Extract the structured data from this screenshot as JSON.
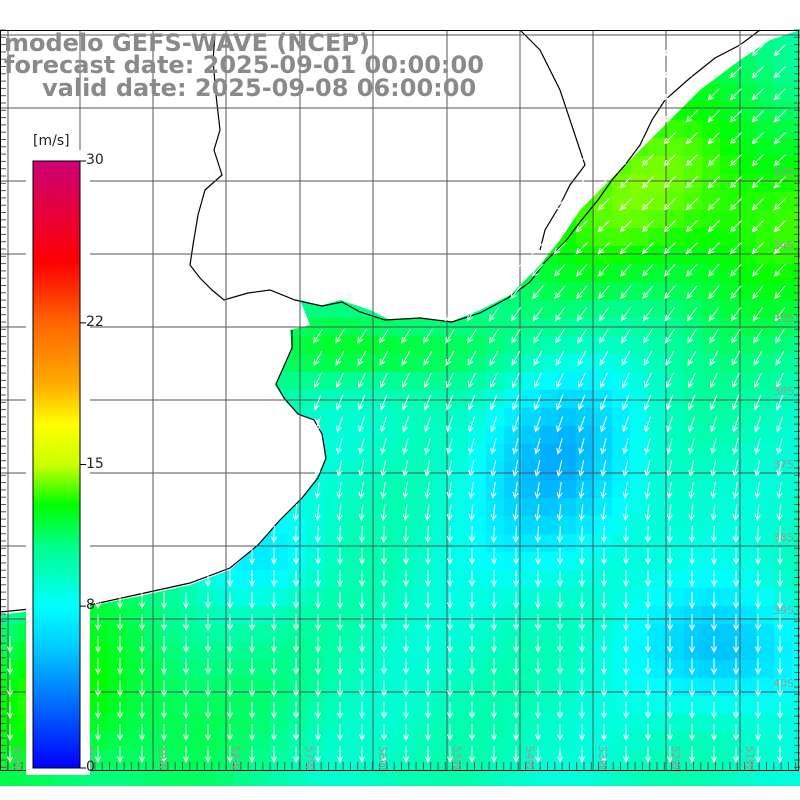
{
  "header": {
    "model_line": "modelo GEFS-WAVE (NCEP)",
    "forecast_line": "forecast date: 2025-09-01 00:00:00",
    "valid_line": "valid date: 2025-09-08 06:00:00"
  },
  "colorbar": {
    "unit": "[m/s]",
    "ticks": [
      {
        "value": 30,
        "label": "30"
      },
      {
        "value": 22,
        "label": "22"
      },
      {
        "value": 15,
        "label": "15"
      },
      {
        "value": 8,
        "label": "8"
      },
      {
        "value": 0,
        "label": "0"
      }
    ],
    "min": 0,
    "max": 30,
    "stops": [
      {
        "v": 0,
        "color": "#0000ff"
      },
      {
        "v": 3,
        "color": "#0066ff"
      },
      {
        "v": 6,
        "color": "#00ccff"
      },
      {
        "v": 8,
        "color": "#00ffff"
      },
      {
        "v": 11,
        "color": "#00ff88"
      },
      {
        "v": 13,
        "color": "#00ff00"
      },
      {
        "v": 15,
        "color": "#ccff00"
      },
      {
        "v": 17,
        "color": "#ffff00"
      },
      {
        "v": 19,
        "color": "#ffaa00"
      },
      {
        "v": 22,
        "color": "#ff6600"
      },
      {
        "v": 25,
        "color": "#ff0000"
      },
      {
        "v": 30,
        "color": "#cc0077"
      }
    ]
  },
  "map": {
    "lon_labels": [
      "61W",
      "60W",
      "59W",
      "58W",
      "57W",
      "56W",
      "55W",
      "54W",
      "53W",
      "52W",
      "51W"
    ],
    "lat_labels": [
      "33S",
      "34S",
      "35S",
      "36S",
      "37S",
      "38S",
      "39S",
      "40S"
    ],
    "colors": {
      "land": "#ffffff",
      "coast": "#000000",
      "grid": "#555555",
      "arrow": "#ffffff",
      "label": "#999999"
    }
  }
}
